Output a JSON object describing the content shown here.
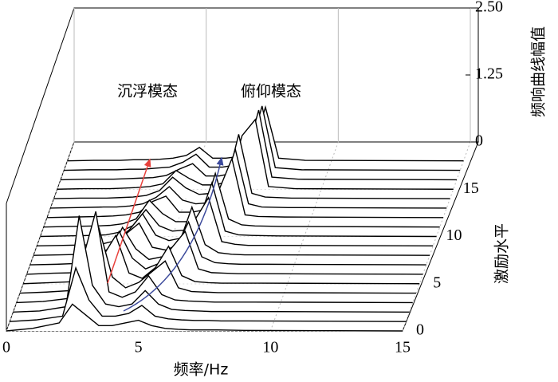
{
  "chart_data": {
    "type": "waterfall",
    "xlabel": "频率/Hz",
    "ylabel": "激励水平",
    "zlabel": "频响曲线幅值",
    "annotations": [
      "沉浮模态",
      "俯仰模态"
    ],
    "xlim": [
      0,
      15
    ],
    "xticks": [
      0,
      5,
      10,
      15
    ],
    "ylim": [
      0,
      20
    ],
    "yticks": [
      0,
      5,
      10,
      15
    ],
    "zlim": [
      0,
      2.5
    ],
    "zticks": [
      0,
      1.25,
      {
        "value": 2.5,
        "label": "2.50"
      }
    ],
    "color": "#000000",
    "x": [
      0,
      1,
      2,
      2.5,
      3,
      3.5,
      4,
      4.5,
      5,
      5.5,
      6,
      6.5,
      7,
      7.5,
      8,
      9,
      15
    ],
    "series": [
      {
        "level": 0,
        "values": [
          0,
          0.05,
          0.15,
          0.5,
          0.3,
          0.1,
          0.1,
          0.15,
          0.2,
          0.1,
          0.05,
          0.03,
          0.02,
          0.02,
          0.02,
          0.01,
          0
        ]
      },
      {
        "level": 1,
        "values": [
          0,
          0.03,
          0.1,
          1.0,
          0.4,
          0.1,
          0.1,
          0.15,
          0.3,
          0.1,
          0.05,
          0.03,
          0.02,
          0.02,
          0.01,
          0.01,
          0
        ]
      },
      {
        "level": 2,
        "values": [
          0,
          0.02,
          0.1,
          1.8,
          0.5,
          0.15,
          0.1,
          0.15,
          0.4,
          0.15,
          0.05,
          0.03,
          0.02,
          0.01,
          0.01,
          0.01,
          0
        ]
      },
      {
        "level": 3,
        "values": [
          0,
          0.02,
          0.08,
          0.8,
          1.7,
          0.2,
          0.1,
          0.2,
          0.5,
          0.15,
          0.05,
          0.03,
          0.02,
          0.01,
          0.01,
          0.01,
          0
        ]
      },
      {
        "level": 4,
        "values": [
          0,
          0.02,
          0.05,
          0.3,
          1.2,
          0.3,
          0.1,
          0.2,
          0.4,
          0.6,
          0.1,
          0.03,
          0.02,
          0.01,
          0.01,
          0.01,
          0
        ]
      },
      {
        "level": 5,
        "values": [
          0,
          0.02,
          0.04,
          0.1,
          0.5,
          0.9,
          0.2,
          0.1,
          0.3,
          0.7,
          0.15,
          0.04,
          0.02,
          0.01,
          0.01,
          0.01,
          0
        ]
      },
      {
        "level": 6,
        "values": [
          0,
          0.02,
          0.03,
          0.08,
          0.3,
          0.8,
          0.3,
          0.1,
          0.2,
          0.5,
          0.8,
          0.1,
          0.03,
          0.02,
          0.01,
          0.01,
          0
        ]
      },
      {
        "level": 7,
        "values": [
          0,
          0.01,
          0.03,
          0.06,
          0.2,
          0.7,
          0.3,
          0.1,
          0.15,
          0.3,
          0.8,
          0.15,
          0.04,
          0.02,
          0.01,
          0.01,
          0
        ]
      },
      {
        "level": 8,
        "values": [
          0,
          0.01,
          0.02,
          0.05,
          0.15,
          0.4,
          0.6,
          0.15,
          0.1,
          0.2,
          0.9,
          0.2,
          0.05,
          0.02,
          0.01,
          0.01,
          0
        ]
      },
      {
        "level": 9,
        "values": [
          0,
          0.01,
          0.02,
          0.04,
          0.1,
          0.3,
          0.6,
          0.2,
          0.1,
          0.15,
          0.5,
          0.9,
          0.08,
          0.03,
          0.01,
          0.01,
          0
        ]
      },
      {
        "level": 10,
        "values": [
          0,
          0.01,
          0.02,
          0.03,
          0.08,
          0.2,
          0.5,
          0.2,
          0.1,
          0.12,
          0.3,
          1.0,
          0.1,
          0.03,
          0.02,
          0.01,
          0
        ]
      },
      {
        "level": 11,
        "values": [
          0,
          0.01,
          0.02,
          0.03,
          0.06,
          0.15,
          0.5,
          0.25,
          0.1,
          0.1,
          0.2,
          1.0,
          0.15,
          0.04,
          0.02,
          0.01,
          0
        ]
      },
      {
        "level": 12,
        "values": [
          0,
          0.01,
          0.02,
          0.03,
          0.05,
          0.1,
          0.3,
          0.4,
          0.1,
          0.1,
          0.15,
          0.5,
          1.1,
          0.05,
          0.02,
          0.01,
          0
        ]
      },
      {
        "level": 13,
        "values": [
          0,
          0.01,
          0.02,
          0.02,
          0.04,
          0.08,
          0.2,
          0.4,
          0.15,
          0.08,
          0.1,
          0.3,
          1.1,
          0.08,
          0.02,
          0.01,
          0
        ]
      },
      {
        "level": 14,
        "values": [
          0,
          0.01,
          0.01,
          0.02,
          0.03,
          0.06,
          0.15,
          0.4,
          0.2,
          0.08,
          0.1,
          0.2,
          1.2,
          0.1,
          0.03,
          0.01,
          0
        ]
      },
      {
        "level": 15,
        "values": [
          0,
          0.01,
          0.01,
          0.02,
          0.03,
          0.05,
          0.1,
          0.35,
          0.2,
          0.08,
          0.08,
          0.15,
          1.0,
          1.3,
          0.05,
          0.01,
          0
        ]
      },
      {
        "level": 16,
        "values": [
          0,
          0.01,
          0.01,
          0.02,
          0.03,
          0.04,
          0.08,
          0.2,
          0.3,
          0.07,
          0.07,
          0.12,
          0.4,
          1.3,
          0.05,
          0.01,
          0
        ]
      },
      {
        "level": 17,
        "values": [
          0,
          0.01,
          0.01,
          0.02,
          0.02,
          0.04,
          0.06,
          0.15,
          0.3,
          0.06,
          0.06,
          0.1,
          0.3,
          1.2,
          0.05,
          0.01,
          0
        ]
      },
      {
        "level": 18,
        "values": [
          0,
          0.01,
          0.01,
          0.02,
          0.02,
          0.03,
          0.05,
          0.1,
          0.25,
          0.05,
          0.05,
          0.08,
          0.2,
          1.0,
          0.05,
          0.01,
          0
        ]
      }
    ]
  }
}
